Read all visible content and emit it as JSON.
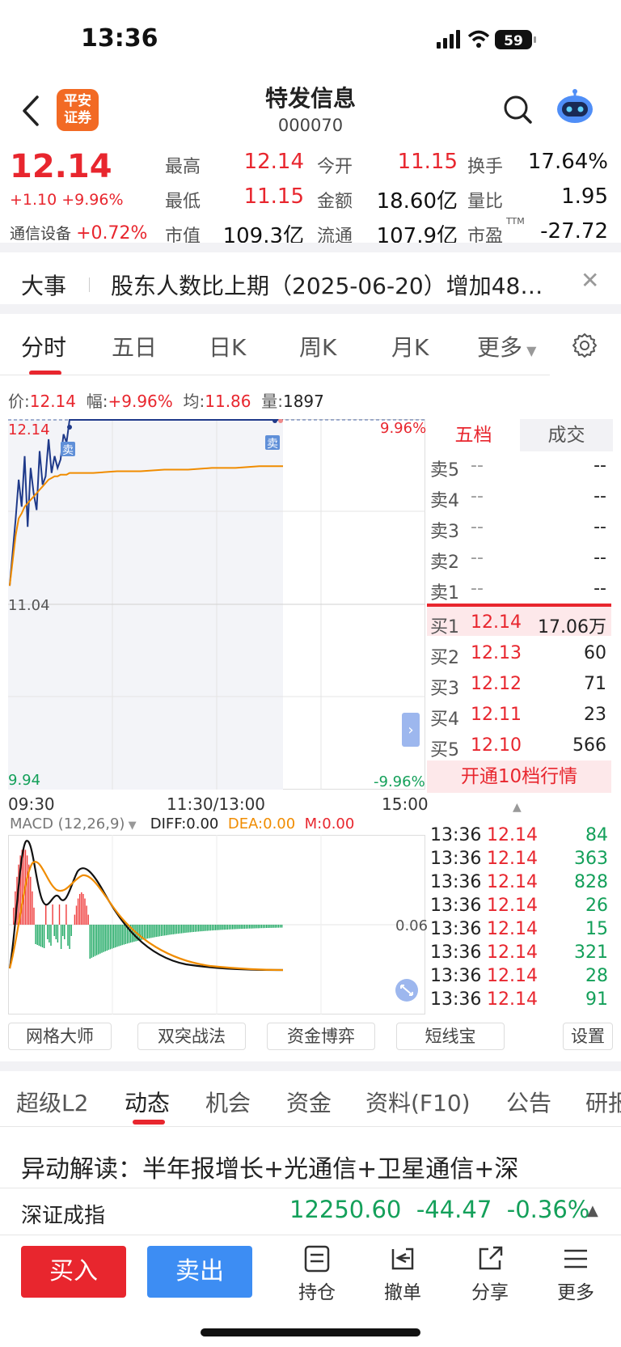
{
  "status": {
    "time": "13:36",
    "battery": "59"
  },
  "header": {
    "logo_line1": "平安",
    "logo_line2": "证券",
    "name": "特发信息",
    "code": "000070"
  },
  "quote": {
    "price": "12.14",
    "change": "+1.10 +9.96%",
    "industry_label": "通信设备",
    "industry_change": "+0.72%",
    "stats": [
      {
        "label": "最高",
        "value": "12.14",
        "color": "red"
      },
      {
        "label": "今开",
        "value": "11.15",
        "color": "red"
      },
      {
        "label": "换手",
        "value": "17.64%",
        "color": "dark"
      },
      {
        "label": "最低",
        "value": "11.15",
        "color": "red"
      },
      {
        "label": "金额",
        "value": "18.60亿",
        "color": "dark"
      },
      {
        "label": "量比",
        "value": "1.95",
        "color": "dark"
      },
      {
        "label": "市值",
        "value": "109.3亿",
        "color": "dark"
      },
      {
        "label": "流通",
        "value": "107.9亿",
        "color": "dark"
      },
      {
        "label": "市盈",
        "value": "-27.72",
        "color": "dark",
        "sup": "TTM"
      }
    ]
  },
  "news": {
    "tag": "大事",
    "text": "股东人数比上期（2025-06-20）增加48…"
  },
  "chart_tabs": [
    "分时",
    "五日",
    "日K",
    "周K",
    "月K",
    "更多"
  ],
  "info_line": {
    "price_label": "价:",
    "price": "12.14",
    "amp_label": "幅:",
    "amp": "+9.96%",
    "avg_label": "均:",
    "avg": "11.86",
    "vol_label": "量:",
    "vol": "1897"
  },
  "chart": {
    "top_left": "12.14",
    "top_right": "9.96%",
    "mid_left": "11.04",
    "bottom_left": "9.94",
    "bottom_right": "-9.96%",
    "sell_marker": "卖",
    "time_labels": [
      "09:30",
      "11:30/13:00",
      "15:00"
    ]
  },
  "chart_data": {
    "type": "line",
    "ylim": [
      9.94,
      12.14
    ],
    "series": [
      {
        "y": [
          11.15,
          11.35,
          11.55,
          11.78,
          11.62,
          11.92,
          11.5,
          11.85,
          11.7,
          11.6,
          11.95,
          11.75,
          11.8,
          12.02,
          11.82,
          11.92,
          11.85,
          11.9,
          12.05,
          12.0,
          12.14,
          12.14,
          12.14,
          12.14,
          12.14,
          12.14,
          12.14,
          12.14,
          12.14,
          12.14
        ]
      },
      {
        "y": [
          11.15,
          11.3,
          11.45,
          11.55,
          11.58,
          11.62,
          11.64,
          11.66,
          11.68,
          11.7,
          11.72,
          11.74,
          11.76,
          11.78,
          11.79,
          11.8,
          11.8,
          11.81,
          11.81,
          11.81,
          11.82,
          11.82,
          11.83,
          11.83,
          11.84,
          11.84,
          11.85,
          11.85,
          11.86,
          11.86
        ]
      }
    ]
  },
  "order_book": {
    "tabs": [
      "五档",
      "成交"
    ],
    "asks": [
      {
        "label": "卖5",
        "price": "--",
        "vol": "--"
      },
      {
        "label": "卖4",
        "price": "--",
        "vol": "--"
      },
      {
        "label": "卖3",
        "price": "--",
        "vol": "--"
      },
      {
        "label": "卖2",
        "price": "--",
        "vol": "--"
      },
      {
        "label": "卖1",
        "price": "--",
        "vol": "--"
      }
    ],
    "bids": [
      {
        "label": "买1",
        "price": "12.14",
        "vol": "17.06万"
      },
      {
        "label": "买2",
        "price": "12.13",
        "vol": "60"
      },
      {
        "label": "买3",
        "price": "12.12",
        "vol": "71"
      },
      {
        "label": "买4",
        "price": "12.11",
        "vol": "23"
      },
      {
        "label": "买5",
        "price": "12.10",
        "vol": "566"
      }
    ],
    "upgrade": "开通10档行情"
  },
  "macd": {
    "title": "MACD (12,26,9)",
    "diff": "DIFF:0.00",
    "dea": "DEA:0.00",
    "m": "M:0.00",
    "scale": "0.06"
  },
  "trades": [
    {
      "time": "13:36",
      "price": "12.14",
      "vol": "84"
    },
    {
      "time": "13:36",
      "price": "12.14",
      "vol": "363"
    },
    {
      "time": "13:36",
      "price": "12.14",
      "vol": "828"
    },
    {
      "time": "13:36",
      "price": "12.14",
      "vol": "26"
    },
    {
      "time": "13:36",
      "price": "12.14",
      "vol": "15"
    },
    {
      "time": "13:36",
      "price": "12.14",
      "vol": "321"
    },
    {
      "time": "13:36",
      "price": "12.14",
      "vol": "28"
    },
    {
      "time": "13:36",
      "price": "12.14",
      "vol": "91"
    }
  ],
  "tools": [
    "网格大师",
    "双突战法",
    "资金博弈",
    "短线宝",
    "设置"
  ],
  "sub_tabs": [
    "超级L2",
    "动态",
    "机会",
    "资金",
    "资料(F10)",
    "公告",
    "研报"
  ],
  "anomaly": "异动解读：半年报增长+光通信+卫星通信+深",
  "index": {
    "name": "深证成指",
    "value": "12250.60",
    "change": "-44.47",
    "pct": "-0.36%"
  },
  "bottom": {
    "buy": "买入",
    "sell": "卖出",
    "items": [
      "持仓",
      "撤单",
      "分享",
      "更多"
    ]
  }
}
